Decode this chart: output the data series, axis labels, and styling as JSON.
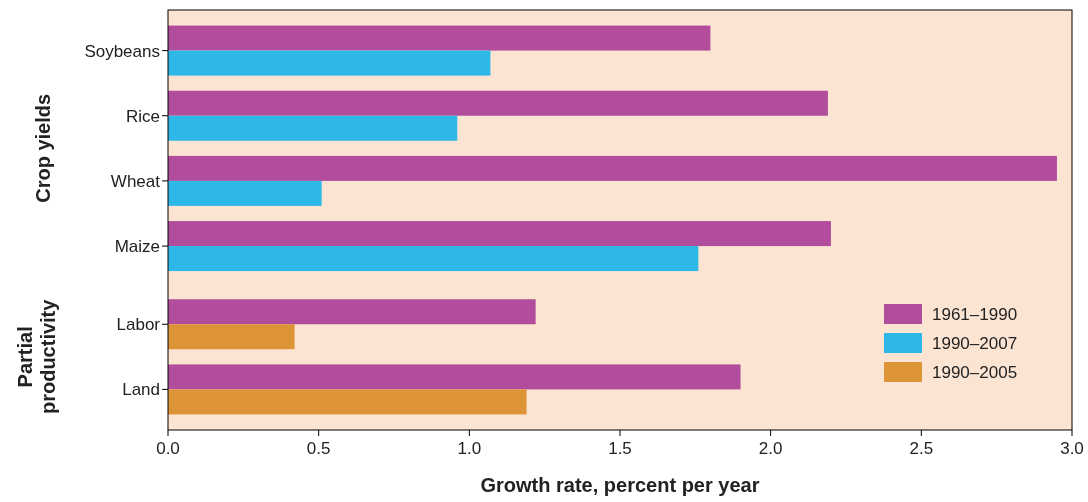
{
  "chart_data": {
    "type": "bar",
    "orientation": "horizontal",
    "xlabel": "Growth rate, percent per year",
    "categories": [
      "Soybeans",
      "Rice",
      "Wheat",
      "Maize",
      "Labor",
      "Land"
    ],
    "series": [
      {
        "name": "1961–1990",
        "color": "#b24c9c",
        "values": [
          1.8,
          2.19,
          2.95,
          2.2,
          1.22,
          1.9
        ]
      },
      {
        "name": "1990–2007",
        "color": "#2eb8e8",
        "values": [
          1.07,
          0.96,
          0.51,
          1.76,
          null,
          null
        ]
      },
      {
        "name": "1990–2005",
        "color": "#dc9436",
        "values": [
          null,
          null,
          null,
          null,
          0.42,
          1.19
        ]
      }
    ],
    "xlim": [
      0,
      3
    ],
    "xticks": [
      {
        "value": 0,
        "label": "0.0"
      },
      {
        "value": 0.5,
        "label": "0.5"
      },
      {
        "value": 1,
        "label": "1.0"
      },
      {
        "value": 1.5,
        "label": "1.5"
      },
      {
        "value": 2,
        "label": "2.0"
      },
      {
        "value": 2.5,
        "label": "2.5"
      },
      {
        "value": 3,
        "label": "3.0"
      }
    ],
    "annotations": [
      "Crop yields",
      "Partial productivity"
    ],
    "legend": "bottom right",
    "grid": false
  }
}
